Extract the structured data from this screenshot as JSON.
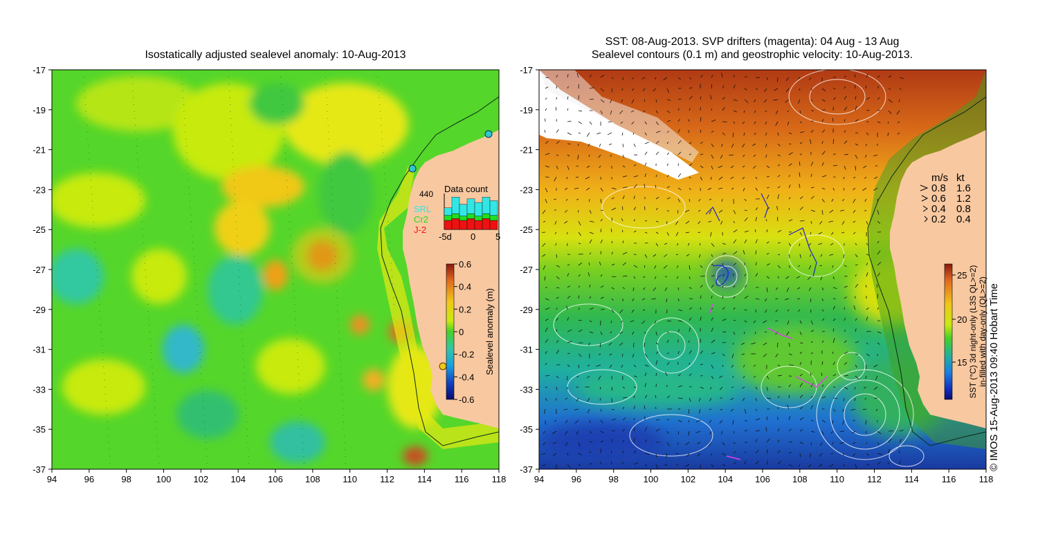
{
  "left_panel": {
    "title": "Isostatically adjusted sealevel anomaly: 10-Aug-2013",
    "x_ticks": [
      "94",
      "96",
      "98",
      "100",
      "102",
      "104",
      "106",
      "108",
      "110",
      "112",
      "114",
      "116",
      "118"
    ],
    "y_ticks": [
      "-17",
      "-19",
      "-21",
      "-23",
      "-25",
      "-27",
      "-29",
      "-31",
      "-33",
      "-35",
      "-37"
    ],
    "data_count": {
      "title": "Data count",
      "max_label": "440",
      "legend": [
        {
          "name": "SRL",
          "color": "#33e6e6"
        },
        {
          "name": "Cr2",
          "color": "#22dd22"
        },
        {
          "name": "J-2",
          "color": "#ee1111"
        }
      ],
      "x_ticks": [
        "-5d",
        "0",
        "5"
      ],
      "bars": [
        {
          "J-2": 0.25,
          "Cr2": 0.35,
          "SRL": 0.6
        },
        {
          "J-2": 0.3,
          "Cr2": 0.35,
          "SRL": 0.9
        },
        {
          "J-2": 0.25,
          "Cr2": 0.3,
          "SRL": 0.7
        },
        {
          "J-2": 0.3,
          "Cr2": 0.35,
          "SRL": 0.85
        },
        {
          "J-2": 0.25,
          "Cr2": 0.3,
          "SRL": 0.75
        },
        {
          "J-2": 0.3,
          "Cr2": 0.35,
          "SRL": 0.9
        },
        {
          "J-2": 0.25,
          "Cr2": 0.35,
          "SRL": 0.8
        }
      ]
    },
    "colorbar": {
      "label": "Sealevel anomaly (m)",
      "ticks": [
        "0.6",
        "0.4",
        "0.2",
        "0",
        "-0.2",
        "-0.4",
        "-0.6"
      ]
    }
  },
  "right_panel": {
    "title_line1": "SST: 08-Aug-2013. SVP drifters (magenta): 04 Aug - 13 Aug",
    "title_line2": "Sealevel contours (0.1 m) and geostrophic velocity: 10-Aug-2013.",
    "x_ticks": [
      "94",
      "96",
      "98",
      "100",
      "102",
      "104",
      "106",
      "108",
      "110",
      "112",
      "114",
      "116",
      "118"
    ],
    "y_ticks": [
      "-17",
      "-19",
      "-21",
      "-23",
      "-25",
      "-27",
      "-29",
      "-31",
      "-33",
      "-35",
      "-37"
    ],
    "velocity_legend": {
      "header_ms": "m/s",
      "header_kt": "kt",
      "rows": [
        {
          "ms": "0.8",
          "kt": "1.6"
        },
        {
          "ms": "0.6",
          "kt": "1.2"
        },
        {
          "ms": "0.4",
          "kt": "0.8"
        },
        {
          "ms": "0.2",
          "kt": "0.4"
        }
      ]
    },
    "colorbar": {
      "label_line1": "SST (°C) 3d night-only (L3S QL>=2)",
      "label_line2": "in-filled with day-only (QL>=2)",
      "ticks": [
        "25",
        "20",
        "15"
      ]
    }
  },
  "credit": "© IMOS 15-Aug-2013 09:40 Hobart Time"
}
